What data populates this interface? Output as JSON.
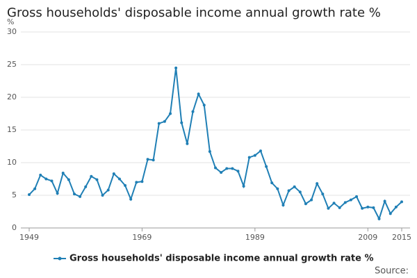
{
  "chart_data": {
    "type": "line",
    "title": "Gross households' disposable income annual growth rate %",
    "y_label": "%",
    "source": "Source:",
    "x": [
      1949,
      1950,
      1951,
      1952,
      1953,
      1954,
      1955,
      1956,
      1957,
      1958,
      1959,
      1960,
      1961,
      1962,
      1963,
      1964,
      1965,
      1966,
      1967,
      1968,
      1969,
      1970,
      1971,
      1972,
      1973,
      1974,
      1975,
      1976,
      1977,
      1978,
      1979,
      1980,
      1981,
      1982,
      1983,
      1984,
      1985,
      1986,
      1987,
      1988,
      1989,
      1990,
      1991,
      1992,
      1993,
      1994,
      1995,
      1996,
      1997,
      1998,
      1999,
      2000,
      2001,
      2002,
      2003,
      2004,
      2005,
      2006,
      2007,
      2008,
      2009,
      2010,
      2011,
      2012,
      2013,
      2014,
      2015
    ],
    "series": [
      {
        "name": "Gross households' disposable income annual growth rate %",
        "color": "#1f7fb5",
        "values": [
          5.1,
          6.0,
          8.1,
          7.5,
          7.2,
          5.3,
          8.4,
          7.4,
          5.2,
          4.8,
          6.3,
          7.9,
          7.4,
          5.0,
          5.8,
          8.3,
          7.5,
          6.5,
          4.4,
          7.0,
          7.1,
          10.5,
          10.4,
          16.0,
          16.3,
          17.5,
          24.5,
          16.1,
          12.9,
          17.8,
          20.5,
          18.8,
          11.7,
          9.2,
          8.5,
          9.1,
          9.1,
          8.7,
          6.4,
          10.8,
          11.1,
          11.8,
          9.4,
          6.9,
          6.0,
          3.5,
          5.7,
          6.3,
          5.5,
          3.7,
          4.3,
          6.8,
          5.2,
          3.0,
          3.8,
          3.1,
          3.9,
          4.3,
          4.8,
          3.0,
          3.2,
          3.1,
          1.4,
          4.1,
          2.2,
          3.2,
          4.0
        ]
      }
    ],
    "xlim": [
      1949,
      2015
    ],
    "xticks": [
      1949,
      1969,
      1989,
      2009,
      2015
    ],
    "ylim": [
      0,
      30
    ],
    "yticks": [
      0,
      5,
      10,
      15,
      20,
      25,
      30
    ],
    "grid": true
  }
}
